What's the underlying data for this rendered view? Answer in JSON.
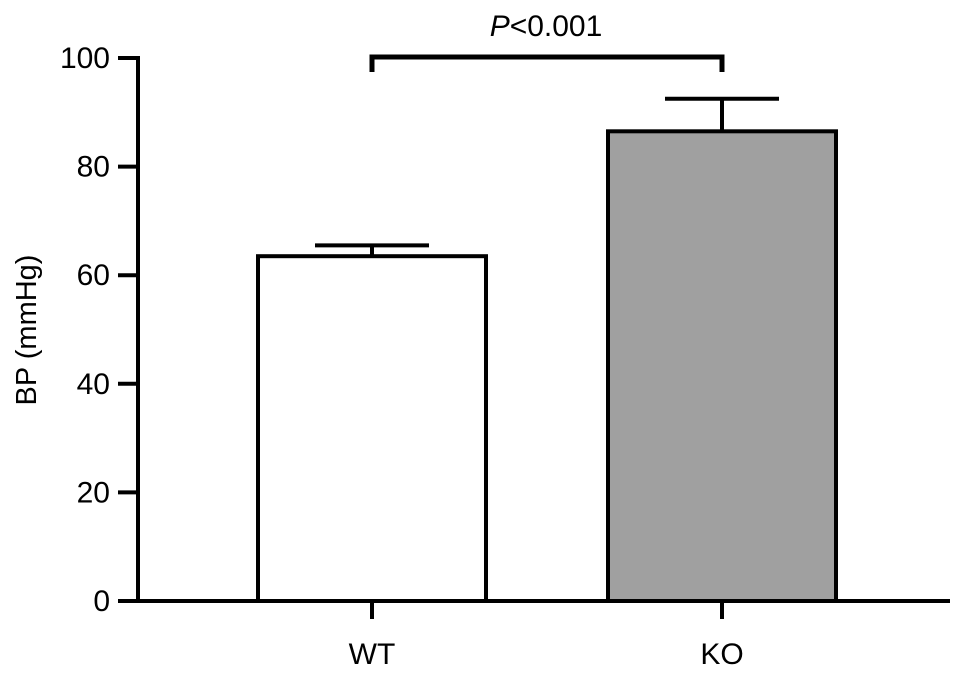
{
  "chart_data": {
    "type": "bar",
    "categories": [
      "WT",
      "KO"
    ],
    "values": [
      63.5,
      86.5
    ],
    "errors": [
      2,
      6
    ],
    "colors": [
      "#ffffff",
      "#a0a0a0"
    ],
    "ylabel": "BP (mmHg)",
    "xlabel": "",
    "ylim": [
      0,
      100
    ],
    "yticks": [
      0,
      20,
      40,
      60,
      80,
      100
    ],
    "grid": false,
    "legend": "none",
    "annotation": {
      "italic": "P",
      "text": "<0.001",
      "between": [
        "WT",
        "KO"
      ]
    }
  }
}
